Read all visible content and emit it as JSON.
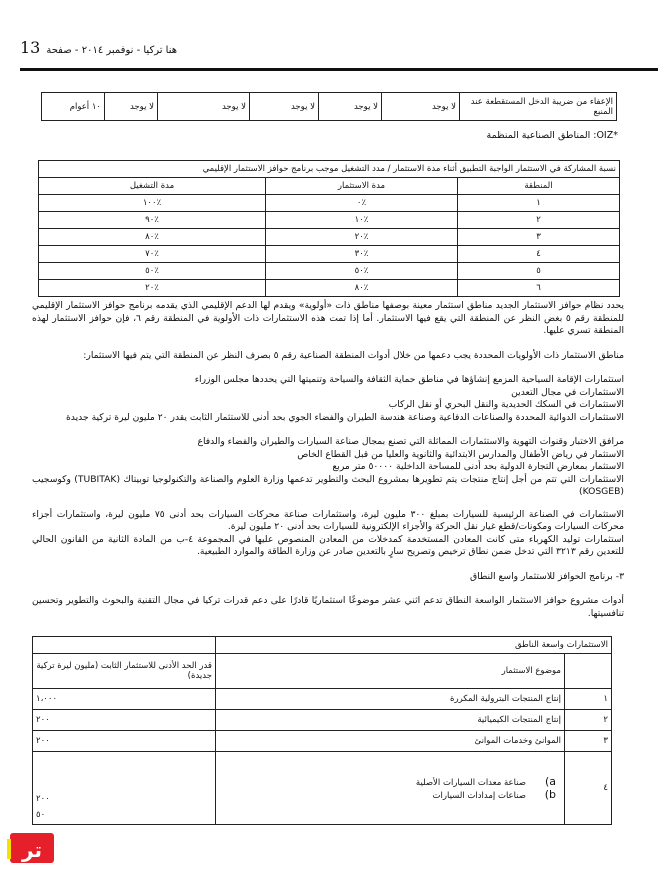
{
  "header": {
    "page_number": "13",
    "title": "هنا تركيا - نوفمبر ٢٠١٤ - صفحة"
  },
  "table1": {
    "label": "الإعفاء من ضريبة الدخل المستقطعة عند المنبع",
    "values": [
      "لا يوجد",
      "لا يوجد",
      "لا يوجد",
      "لا يوجد",
      "لا يوجد",
      "١٠ أعوام"
    ]
  },
  "oiz_note": "*OIZ: المناطق الصناعية المنظمة",
  "table2": {
    "caption": "نسبة المشاركة في الاستثمار الواجبة التطبيق أثناء مدة الاستثمار / مدد التشغيل موجب برنامج حوافز الاستثمار الإقليمي",
    "headers": [
      "المنطقة",
      "مدة الاستثمار",
      "مدة التشغيل"
    ],
    "rows": [
      [
        "١",
        "٪٠",
        "٪١٠٠"
      ],
      [
        "٢",
        "٪١٠",
        "٪٩٠"
      ],
      [
        "٣",
        "٪٢٠",
        "٪٨٠"
      ],
      [
        "٤",
        "٪٣٠",
        "٪٧٠"
      ],
      [
        "٥",
        "٪٥٠",
        "٪٥٠"
      ],
      [
        "٦",
        "٪٨٠",
        "٪٢٠"
      ]
    ]
  },
  "paragraphs": [
    "يحدد نظام حوافز الاستثمار الجديد مناطق استثمار معينة بوصفها مناطق ذات «أولوية» ويقدم لها الدعم الإقليمي الذي يقدمه برنامج حوافز الاستثمار الإقليمي للمنطقة رقم ٥ بغض النظر عن المنطقة التي يقع فيها الاستثمار. أما إذا تمت هذه الاستثمارات ذات الأولوية في المنطقة رقم ٦، فإن حوافز الاستثمار لهذه المنطقة تسري عليها.",
    "مناطق الاستثمار ذات الأولويات المحددة يجب دعمها من خلال أدوات المنطقة الصناعية رقم ٥ بصرف النظر عن المنطقة التي يتم فيها الاستثمار:"
  ],
  "list1": [
    "استثمارات الإقامة السياحية المزمع إنشاؤها في مناطق حماية الثقافة والسياحة وتنميتها التي يحددها مجلس الوزراء",
    "الاستثمارات في مجال التعدين",
    "الاستثمارات في السكك الحديدية والنقل البحري أو نقل الركاب",
    "الاستثمارات الدوائية المحددة والصناعات الدفاعية وصناعة هندسة الطيران والفضاء الجوي بحد أدنى للاستثمار الثابت يقدر ٢٠ مليون ليرة تركية جديدة"
  ],
  "list2": [
    "مرافق الاختبار وقنوات التهوية والاستثمارات المماثلة التي تصنع بمجال صناعة السيارات والطيران والفضاء والدفاع",
    "الاستثمار في رياض الأطفال والمدارس الابتدائية والثانوية والعليا من قبل القطاع الخاص",
    "الاستثمار بمعارض التجارة الدولية بحد أدنى للمساحة الداخلية ٥٠٠٠٠ متر مربع",
    "الاستثمارات التي تتم من أجل إنتاج منتجات يتم تطويرها بمشروع البحث والتطوير تدعمها وزارة العلوم والصناعة والتكنولوجيا توبيتاك (TUBITAK) وكوسجيب (KOSGEB)"
  ],
  "list3": [
    "الاستثمارات في الصناعة الرئيسية للسيارات بمبلغ ٣٠٠ مليون ليرة، واستثمارات صناعة محركات السيارات بحد أدنى ٧٥ مليون ليرة، واستثمارات أجزاء محركات السيارات ومكونات/قطع غيار نقل الحركة والأجزاء الإلكترونية للسيارات بحد أدنى ٢٠ مليون ليرة.",
    "استثمارات توليد الكهرباء متى كانت المعادن المستخدمة كمدخلات من المعادن المنصوص عليها في المجموعة ٤-ب من المادة الثانية من القانون الحالي للتعدين رقم ٣٢١٣ التي تدخل ضمن نطاق ترخيص وتصريح سارٍ بالتعدين صادر عن وزارة الطاقة والموارد الطبيعية."
  ],
  "section_title": "٣- برنامج الحوافز للاستثمار واسع النطاق",
  "section_text": "أدوات مشروع حوافز الاستثمار الواسعة النطاق تدعم اثني عشر موضوعًا استثماريًا قادرًا على دعم قدرات تركيا في مجال التقنية والبحوث والتطوير وتحسين تنافسيتها.",
  "table3": {
    "caption": "الاستثمارات واسعة الناطق",
    "col_subject": "موضوع الاستثمار",
    "col_min": "قدر الحد الأدنى للاستثمار الثابت (مليون ليرة تركية جديدة)",
    "rows": [
      {
        "num": "١",
        "subject": "إنتاج المنتجات البترولية المكررة",
        "min": "١،٠٠٠"
      },
      {
        "num": "٢",
        "subject": "إنتاج المنتجات الكيميائية",
        "min": "٢٠٠"
      },
      {
        "num": "٣",
        "subject": "الموانئ وخدمات الموانئ",
        "min": "٢٠٠"
      }
    ],
    "row4": {
      "num": "٤",
      "a_label": "a)",
      "a": "صناعة معدات السيارات الأصلية",
      "b_label": "b)",
      "b": "صناعات إمدادات السيارات",
      "min_a": "٢٠٠",
      "min_b": "٥٠"
    }
  },
  "logo": "تر"
}
